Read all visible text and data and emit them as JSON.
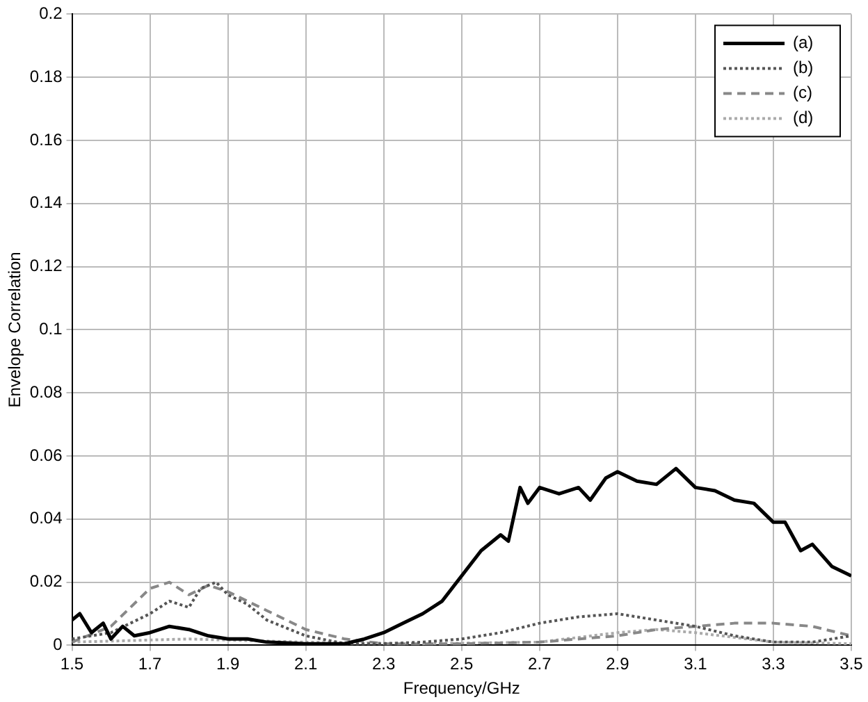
{
  "chart_data": {
    "type": "line",
    "xlabel": "Frequency/GHz",
    "ylabel": "Envelope Correlation",
    "xlim": [
      1.5,
      3.5
    ],
    "ylim": [
      0,
      0.2
    ],
    "xticks": [
      1.5,
      1.7,
      1.9,
      2.1,
      2.3,
      2.5,
      2.7,
      2.9,
      3.1,
      3.3,
      3.5
    ],
    "yticks": [
      0,
      0.02,
      0.04,
      0.06,
      0.08,
      0.1,
      0.12,
      0.14,
      0.16,
      0.18,
      0.2
    ],
    "grid": true,
    "legend": "top right",
    "marker": "none",
    "series": [
      {
        "name": "(a)",
        "color": "#000000",
        "line_style": "solid",
        "x": [
          1.5,
          1.52,
          1.55,
          1.58,
          1.6,
          1.63,
          1.66,
          1.7,
          1.75,
          1.8,
          1.85,
          1.9,
          1.95,
          2.0,
          2.1,
          2.2,
          2.25,
          2.3,
          2.35,
          2.4,
          2.45,
          2.5,
          2.55,
          2.6,
          2.62,
          2.65,
          2.67,
          2.7,
          2.75,
          2.8,
          2.83,
          2.87,
          2.9,
          2.95,
          3.0,
          3.05,
          3.1,
          3.15,
          3.2,
          3.25,
          3.3,
          3.33,
          3.37,
          3.4,
          3.45,
          3.5
        ],
        "values": [
          0.008,
          0.01,
          0.004,
          0.007,
          0.002,
          0.006,
          0.003,
          0.004,
          0.006,
          0.005,
          0.003,
          0.002,
          0.002,
          0.001,
          0.0005,
          0.0005,
          0.002,
          0.004,
          0.007,
          0.01,
          0.014,
          0.022,
          0.03,
          0.035,
          0.033,
          0.05,
          0.045,
          0.05,
          0.048,
          0.05,
          0.046,
          0.053,
          0.055,
          0.052,
          0.051,
          0.056,
          0.05,
          0.049,
          0.046,
          0.045,
          0.039,
          0.039,
          0.03,
          0.032,
          0.025,
          0.022
        ]
      },
      {
        "name": "(b)",
        "color": "#555555",
        "line_style": "dotted",
        "x": [
          1.5,
          1.6,
          1.7,
          1.75,
          1.8,
          1.83,
          1.87,
          1.9,
          1.95,
          2.0,
          2.1,
          2.2,
          2.3,
          2.4,
          2.5,
          2.6,
          2.7,
          2.8,
          2.9,
          3.0,
          3.1,
          3.2,
          3.3,
          3.4,
          3.5
        ],
        "values": [
          0.002,
          0.004,
          0.01,
          0.014,
          0.012,
          0.018,
          0.02,
          0.016,
          0.013,
          0.008,
          0.003,
          0.0005,
          0.0005,
          0.001,
          0.002,
          0.004,
          0.007,
          0.009,
          0.01,
          0.008,
          0.006,
          0.003,
          0.001,
          0.001,
          0.003
        ]
      },
      {
        "name": "(c)",
        "color": "#888888",
        "line_style": "dashed",
        "x": [
          1.5,
          1.6,
          1.65,
          1.7,
          1.75,
          1.8,
          1.85,
          1.9,
          1.95,
          2.0,
          2.05,
          2.1,
          2.2,
          2.3,
          2.5,
          2.7,
          2.9,
          3.0,
          3.1,
          3.2,
          3.3,
          3.4,
          3.5
        ],
        "values": [
          0.001,
          0.006,
          0.012,
          0.018,
          0.02,
          0.016,
          0.019,
          0.017,
          0.014,
          0.011,
          0.008,
          0.005,
          0.002,
          0.0005,
          0.0005,
          0.001,
          0.003,
          0.005,
          0.006,
          0.007,
          0.007,
          0.006,
          0.003
        ]
      },
      {
        "name": "(d)",
        "color": "#aaaaaa",
        "line_style": "dotted",
        "x": [
          1.5,
          1.8,
          2.1,
          2.4,
          2.7,
          2.9,
          3.0,
          3.1,
          3.3,
          3.5
        ],
        "values": [
          0.001,
          0.002,
          0.001,
          0.0005,
          0.001,
          0.004,
          0.005,
          0.004,
          0.001,
          0.0005
        ]
      }
    ]
  }
}
